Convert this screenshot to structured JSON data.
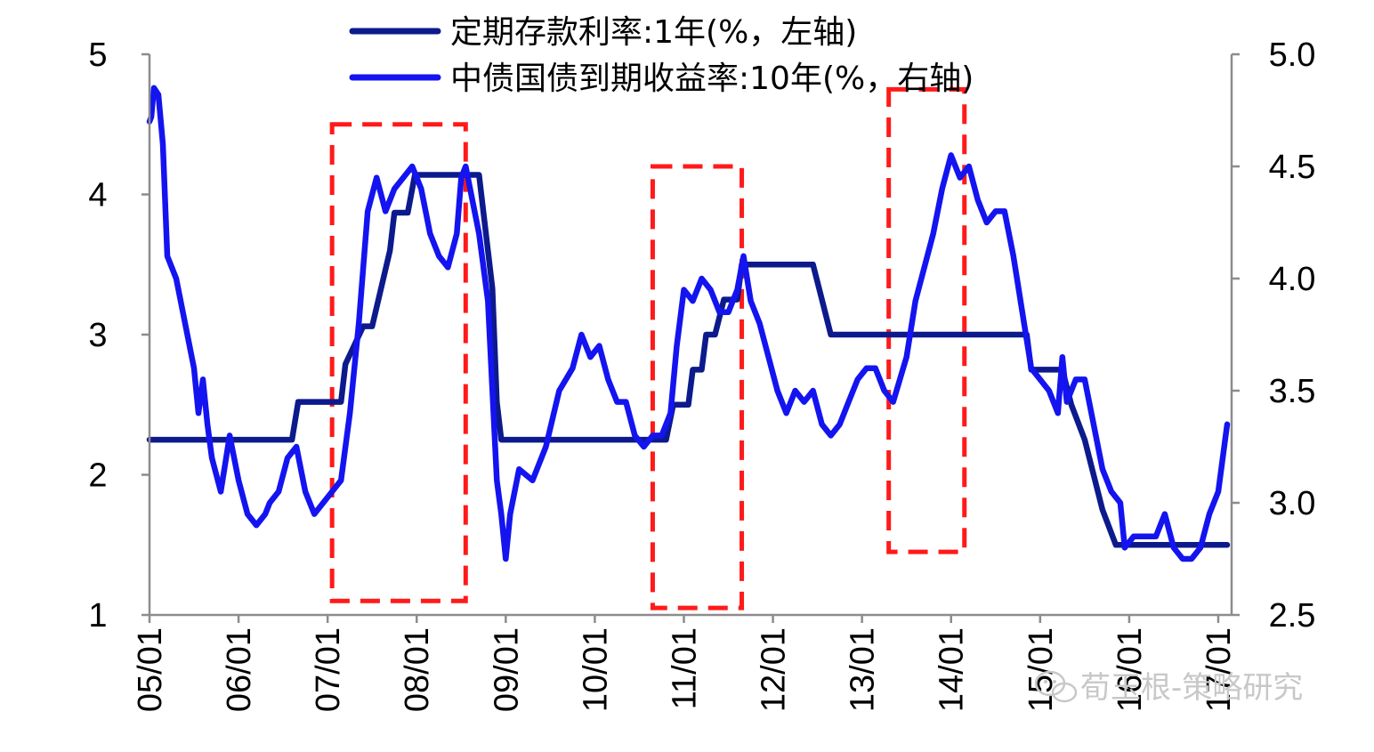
{
  "chart_data": {
    "type": "line",
    "title": "",
    "xlabel": "",
    "ylabel": "",
    "x_ticks": [
      "05/01",
      "06/01",
      "07/01",
      "08/01",
      "09/01",
      "10/01",
      "11/01",
      "12/01",
      "13/01",
      "14/01",
      "15/01",
      "16/01",
      "17/01"
    ],
    "left_axis": {
      "ylim": [
        1,
        5
      ],
      "ticks": [
        "1",
        "2",
        "3",
        "4",
        "5"
      ]
    },
    "right_axis": {
      "ylim": [
        2.5,
        5.0
      ],
      "ticks": [
        "2.5",
        "3.0",
        "3.5",
        "4.0",
        "4.5",
        "5.0"
      ]
    },
    "legend": {
      "position": "top-center"
    },
    "grid": false,
    "series": [
      {
        "name": "定期存款利率:1年(%，左轴)",
        "axis": "left",
        "color": "#0d1a8c",
        "points": [
          [
            2005.0,
            2.25
          ],
          [
            2006.6,
            2.25
          ],
          [
            2006.67,
            2.52
          ],
          [
            2007.15,
            2.52
          ],
          [
            2007.2,
            2.79
          ],
          [
            2007.4,
            3.06
          ],
          [
            2007.5,
            3.06
          ],
          [
            2007.7,
            3.6
          ],
          [
            2007.75,
            3.87
          ],
          [
            2007.9,
            3.87
          ],
          [
            2007.98,
            4.14
          ],
          [
            2008.7,
            4.14
          ],
          [
            2008.75,
            3.87
          ],
          [
            2008.8,
            3.6
          ],
          [
            2008.85,
            3.33
          ],
          [
            2008.9,
            2.52
          ],
          [
            2008.95,
            2.25
          ],
          [
            2010.8,
            2.25
          ],
          [
            2010.88,
            2.5
          ],
          [
            2011.05,
            2.5
          ],
          [
            2011.1,
            2.75
          ],
          [
            2011.2,
            2.75
          ],
          [
            2011.25,
            3.0
          ],
          [
            2011.35,
            3.0
          ],
          [
            2011.45,
            3.25
          ],
          [
            2011.6,
            3.25
          ],
          [
            2011.65,
            3.5
          ],
          [
            2012.45,
            3.5
          ],
          [
            2012.55,
            3.25
          ],
          [
            2012.65,
            3.0
          ],
          [
            2014.85,
            3.0
          ],
          [
            2014.9,
            2.75
          ],
          [
            2015.25,
            2.75
          ],
          [
            2015.35,
            2.5
          ],
          [
            2015.5,
            2.25
          ],
          [
            2015.6,
            2.0
          ],
          [
            2015.7,
            1.75
          ],
          [
            2015.85,
            1.5
          ],
          [
            2017.1,
            1.5
          ]
        ]
      },
      {
        "name": "中债国债到期收益率:10年(%，右轴)",
        "axis": "right",
        "color": "#1414f0",
        "points": [
          [
            2005.0,
            4.7
          ],
          [
            2005.02,
            4.72
          ],
          [
            2005.05,
            4.85
          ],
          [
            2005.1,
            4.82
          ],
          [
            2005.15,
            4.6
          ],
          [
            2005.2,
            4.1
          ],
          [
            2005.3,
            4.0
          ],
          [
            2005.4,
            3.8
          ],
          [
            2005.5,
            3.6
          ],
          [
            2005.55,
            3.4
          ],
          [
            2005.6,
            3.55
          ],
          [
            2005.65,
            3.35
          ],
          [
            2005.7,
            3.2
          ],
          [
            2005.8,
            3.05
          ],
          [
            2005.9,
            3.3
          ],
          [
            2006.0,
            3.1
          ],
          [
            2006.1,
            2.95
          ],
          [
            2006.2,
            2.9
          ],
          [
            2006.3,
            2.95
          ],
          [
            2006.35,
            3.0
          ],
          [
            2006.45,
            3.05
          ],
          [
            2006.55,
            3.2
          ],
          [
            2006.65,
            3.25
          ],
          [
            2006.75,
            3.05
          ],
          [
            2006.85,
            2.95
          ],
          [
            2006.95,
            3.0
          ],
          [
            2007.05,
            3.05
          ],
          [
            2007.15,
            3.1
          ],
          [
            2007.25,
            3.4
          ],
          [
            2007.35,
            3.8
          ],
          [
            2007.45,
            4.3
          ],
          [
            2007.55,
            4.45
          ],
          [
            2007.65,
            4.3
          ],
          [
            2007.75,
            4.4
          ],
          [
            2007.85,
            4.45
          ],
          [
            2007.95,
            4.5
          ],
          [
            2008.05,
            4.4
          ],
          [
            2008.15,
            4.2
          ],
          [
            2008.25,
            4.1
          ],
          [
            2008.35,
            4.05
          ],
          [
            2008.45,
            4.2
          ],
          [
            2008.5,
            4.45
          ],
          [
            2008.55,
            4.5
          ],
          [
            2008.6,
            4.4
          ],
          [
            2008.7,
            4.2
          ],
          [
            2008.8,
            3.9
          ],
          [
            2008.85,
            3.5
          ],
          [
            2008.9,
            3.1
          ],
          [
            2008.95,
            2.95
          ],
          [
            2009.0,
            2.75
          ],
          [
            2009.05,
            2.95
          ],
          [
            2009.15,
            3.15
          ],
          [
            2009.3,
            3.1
          ],
          [
            2009.45,
            3.25
          ],
          [
            2009.6,
            3.5
          ],
          [
            2009.75,
            3.6
          ],
          [
            2009.85,
            3.75
          ],
          [
            2009.95,
            3.65
          ],
          [
            2010.05,
            3.7
          ],
          [
            2010.15,
            3.55
          ],
          [
            2010.25,
            3.45
          ],
          [
            2010.35,
            3.45
          ],
          [
            2010.45,
            3.3
          ],
          [
            2010.55,
            3.25
          ],
          [
            2010.65,
            3.3
          ],
          [
            2010.75,
            3.3
          ],
          [
            2010.85,
            3.4
          ],
          [
            2010.92,
            3.7
          ],
          [
            2011.0,
            3.95
          ],
          [
            2011.1,
            3.9
          ],
          [
            2011.2,
            4.0
          ],
          [
            2011.3,
            3.95
          ],
          [
            2011.4,
            3.85
          ],
          [
            2011.5,
            3.85
          ],
          [
            2011.6,
            3.95
          ],
          [
            2011.67,
            4.1
          ],
          [
            2011.75,
            3.9
          ],
          [
            2011.85,
            3.8
          ],
          [
            2011.95,
            3.65
          ],
          [
            2012.05,
            3.5
          ],
          [
            2012.15,
            3.4
          ],
          [
            2012.25,
            3.5
          ],
          [
            2012.35,
            3.45
          ],
          [
            2012.45,
            3.5
          ],
          [
            2012.55,
            3.35
          ],
          [
            2012.65,
            3.3
          ],
          [
            2012.75,
            3.35
          ],
          [
            2012.85,
            3.45
          ],
          [
            2012.95,
            3.55
          ],
          [
            2013.05,
            3.6
          ],
          [
            2013.15,
            3.6
          ],
          [
            2013.25,
            3.5
          ],
          [
            2013.35,
            3.45
          ],
          [
            2013.5,
            3.65
          ],
          [
            2013.6,
            3.9
          ],
          [
            2013.7,
            4.05
          ],
          [
            2013.8,
            4.2
          ],
          [
            2013.9,
            4.4
          ],
          [
            2014.0,
            4.55
          ],
          [
            2014.1,
            4.45
          ],
          [
            2014.2,
            4.5
          ],
          [
            2014.3,
            4.35
          ],
          [
            2014.4,
            4.25
          ],
          [
            2014.5,
            4.3
          ],
          [
            2014.6,
            4.3
          ],
          [
            2014.7,
            4.1
          ],
          [
            2014.8,
            3.85
          ],
          [
            2014.9,
            3.6
          ],
          [
            2015.0,
            3.55
          ],
          [
            2015.1,
            3.5
          ],
          [
            2015.2,
            3.4
          ],
          [
            2015.25,
            3.65
          ],
          [
            2015.3,
            3.45
          ],
          [
            2015.4,
            3.55
          ],
          [
            2015.5,
            3.55
          ],
          [
            2015.6,
            3.35
          ],
          [
            2015.7,
            3.15
          ],
          [
            2015.8,
            3.05
          ],
          [
            2015.9,
            3.0
          ],
          [
            2015.95,
            2.8
          ],
          [
            2016.05,
            2.85
          ],
          [
            2016.15,
            2.85
          ],
          [
            2016.3,
            2.85
          ],
          [
            2016.4,
            2.95
          ],
          [
            2016.5,
            2.8
          ],
          [
            2016.6,
            2.75
          ],
          [
            2016.7,
            2.75
          ],
          [
            2016.8,
            2.8
          ],
          [
            2016.9,
            2.95
          ],
          [
            2017.0,
            3.05
          ],
          [
            2017.05,
            3.2
          ],
          [
            2017.1,
            3.35
          ]
        ]
      }
    ],
    "annotations": [
      {
        "kind": "dashed-box",
        "color": "#ff1a1a",
        "x_range": [
          2007.05,
          2008.55
        ],
        "y_range_left": [
          1.1,
          4.5
        ]
      },
      {
        "kind": "dashed-box",
        "color": "#ff1a1a",
        "x_range": [
          2010.65,
          2011.65
        ],
        "y_range_left": [
          1.05,
          4.2
        ]
      },
      {
        "kind": "dashed-box",
        "color": "#ff1a1a",
        "x_range": [
          2013.3,
          2014.15
        ],
        "y_range_left": [
          1.45,
          4.75
        ]
      }
    ]
  },
  "watermark": {
    "text": "荀玉根-策略研究",
    "icon": "wechat-icon"
  }
}
